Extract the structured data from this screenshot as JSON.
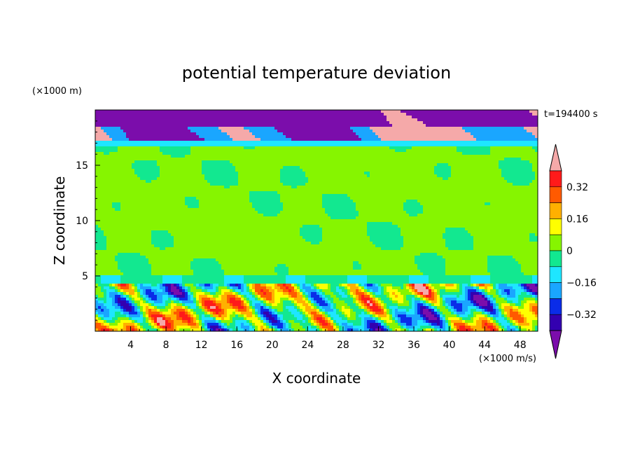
{
  "chart_data": {
    "type": "heatmap",
    "title": "potential temperature deviation",
    "xlabel": "X coordinate",
    "ylabel": "Z coordinate",
    "x_unit": "(×1000 m/s)",
    "y_unit": "(×1000 m)",
    "time_label": "t=194400 s",
    "xlim": [
      0,
      50
    ],
    "ylim": [
      0,
      20
    ],
    "x_ticks": [
      "4",
      "8",
      "12",
      "16",
      "20",
      "24",
      "28",
      "32",
      "36",
      "40",
      "44",
      "48"
    ],
    "y_ticks": [
      "5",
      "10",
      "15"
    ],
    "colorbar": {
      "labels": [
        "0.32",
        "0.16",
        "0",
        "−0.16",
        "−0.32"
      ],
      "levels": [
        -0.4,
        -0.32,
        -0.24,
        -0.16,
        -0.08,
        0,
        0.08,
        0.16,
        0.24,
        0.32,
        0.4
      ],
      "colors": [
        "#7b0dab",
        "#3300b0",
        "#0a2ce8",
        "#1aa6ff",
        "#1ee6ff",
        "#12e890",
        "#86f500",
        "#ffff00",
        "#ffb000",
        "#ff5a00",
        "#ff1a1a",
        "#f5a9a9"
      ]
    },
    "bands": [
      {
        "z": [
          0.0,
          4.4
        ],
        "pattern": "strongly mixed, values from below -0.40 to above 0.40"
      },
      {
        "z": [
          4.4,
          5.0
        ],
        "value": -0.04
      },
      {
        "z": [
          5.0,
          16.8
        ],
        "value": 0.04
      },
      {
        "z": [
          16.8,
          17.2
        ],
        "value": -0.12
      },
      {
        "z": [
          17.2,
          20.0
        ],
        "pattern": "mixed, below -0.40 and above 0.40"
      }
    ]
  }
}
